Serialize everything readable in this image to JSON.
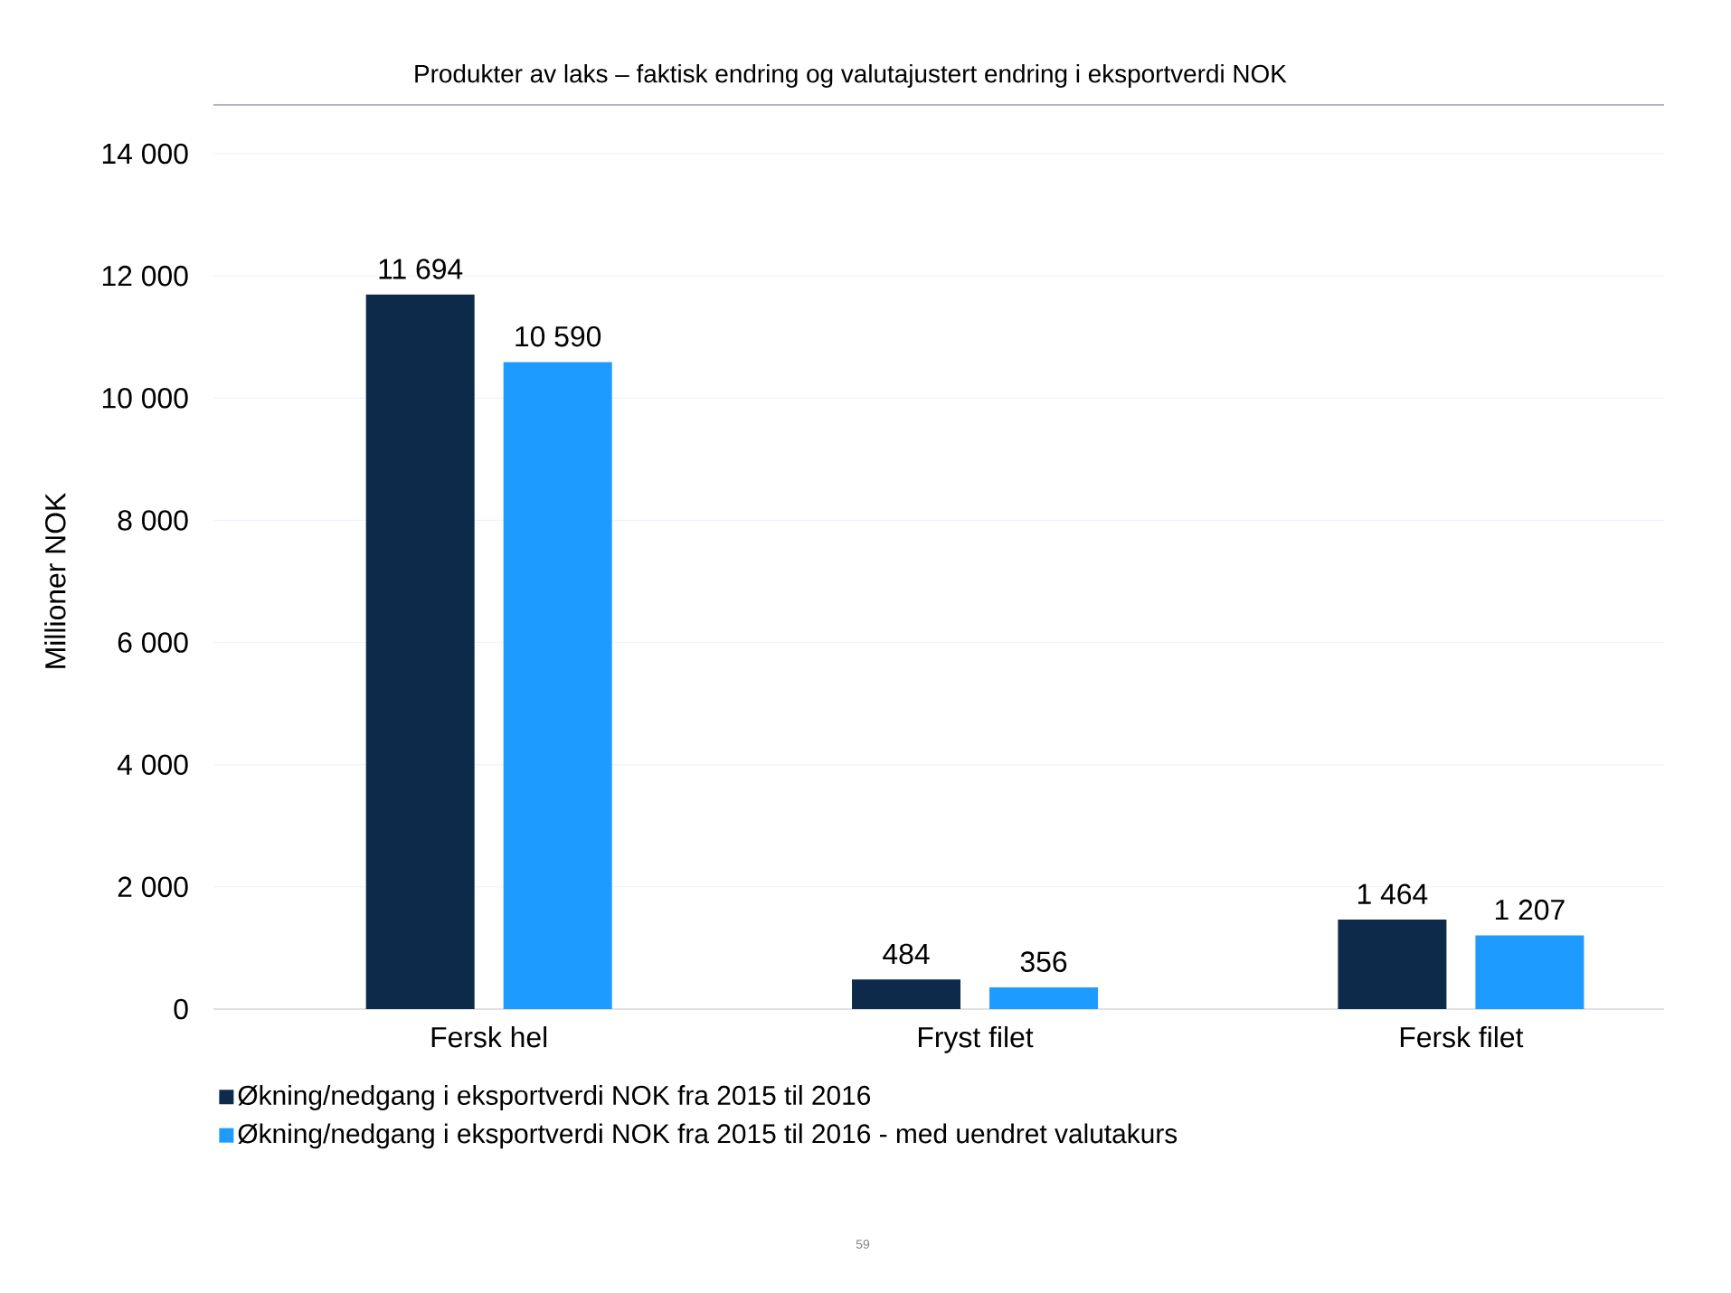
{
  "chart_data": {
    "type": "bar",
    "title": "Produkter av laks – faktisk endring og valutajustert endring i eksportverdi NOK",
    "ylabel": "Millioner NOK",
    "categories": [
      "Fersk hel",
      "Fryst filet",
      "Fersk filet"
    ],
    "series": [
      {
        "name": "Økning/nedgang i eksportverdi NOK fra 2015 til 2016",
        "color": "#0d2a4a",
        "values": [
          11694,
          484,
          1464
        ],
        "value_labels": [
          "11 694",
          "484",
          "1 464"
        ]
      },
      {
        "name": "Økning/nedgang i eksportverdi NOK fra 2015 til 2016 - med uendret valutakurs",
        "color": "#1e9bff",
        "values": [
          10590,
          356,
          1207
        ],
        "value_labels": [
          "10 590",
          "356",
          "1 207"
        ]
      }
    ],
    "ylim": [
      0,
      14000
    ],
    "yticks": [
      {
        "value": 0,
        "label": "0"
      },
      {
        "value": 2000,
        "label": "2 000"
      },
      {
        "value": 4000,
        "label": "4 000"
      },
      {
        "value": 6000,
        "label": "6 000"
      },
      {
        "value": 8000,
        "label": "8 000"
      },
      {
        "value": 10000,
        "label": "10 000"
      },
      {
        "value": 12000,
        "label": "12 000"
      },
      {
        "value": 14000,
        "label": "14 000"
      }
    ],
    "grid": "y",
    "legend": "bottom",
    "annotations": [
      "59"
    ]
  }
}
